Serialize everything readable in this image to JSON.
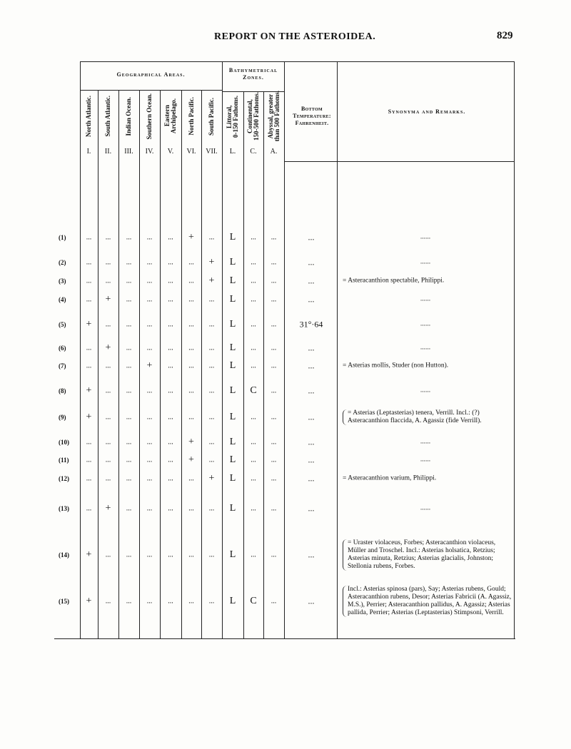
{
  "running_head": "REPORT ON THE ASTEROIDEA.",
  "page_number": "829",
  "table": {
    "group_geo": "Geographical Areas.",
    "group_bathy": "Bathymetrical Zones.",
    "columns": [
      {
        "label": "North Atlantic.",
        "num": "I."
      },
      {
        "label": "South Atlantic.",
        "num": "II."
      },
      {
        "label": "Indian Ocean.",
        "num": "III."
      },
      {
        "label": "Southern Ocean.",
        "num": "IV."
      },
      {
        "label": "Eastern\nArchipelago.",
        "num": "V."
      },
      {
        "label": "North Pacific.",
        "num": "VI."
      },
      {
        "label": "South Pacific.",
        "num": "VII."
      },
      {
        "label": "Littoral,\n0-150 Fathoms.",
        "num": "L."
      },
      {
        "label": "Continental,\n150-500 Fathoms.",
        "num": "C."
      },
      {
        "label": "Abyssal, greater\nthan 500 Fathoms.",
        "num": "A."
      }
    ],
    "temp_header": "Bottom Temperature: Fahrenheit.",
    "remarks_header": "Synonyma and Remarks.",
    "rows": [
      {
        "label": "(1)",
        "cells": [
          "...",
          "...",
          "...",
          "...",
          "...",
          "+",
          "...",
          "L",
          "...",
          "..."
        ],
        "temp": "...",
        "remark": "......"
      },
      {
        "label": "(2)",
        "cells": [
          "...",
          "...",
          "...",
          "...",
          "...",
          "...",
          "+",
          "L",
          "...",
          "..."
        ],
        "temp": "...",
        "remark": "......"
      },
      {
        "label": "(3)",
        "cells": [
          "...",
          "...",
          "...",
          "...",
          "...",
          "...",
          "+",
          "L",
          "...",
          "..."
        ],
        "temp": "...",
        "remark": "= Asteracanthion spectabile, Philippi."
      },
      {
        "label": "(4)",
        "cells": [
          "...",
          "+",
          "...",
          "...",
          "...",
          "...",
          "...",
          "L",
          "...",
          "..."
        ],
        "temp": "...",
        "remark": "......"
      },
      {
        "label": "(5)",
        "cells": [
          "+",
          "...",
          "...",
          "...",
          "...",
          "...",
          "...",
          "L",
          "...",
          "..."
        ],
        "temp": "31°·64",
        "remark": "......"
      },
      {
        "label": "(6)",
        "cells": [
          "...",
          "+",
          "...",
          "...",
          "...",
          "...",
          "...",
          "L",
          "...",
          "..."
        ],
        "temp": "...",
        "remark": "......"
      },
      {
        "label": "(7)",
        "cells": [
          "...",
          "...",
          "...",
          "+",
          "...",
          "...",
          "...",
          "L",
          "...",
          "..."
        ],
        "temp": "...",
        "remark": "= Asterias mollis, Studer (non Hutton)."
      },
      {
        "label": "(8)",
        "cells": [
          "+",
          "...",
          "...",
          "...",
          "...",
          "...",
          "...",
          "L",
          "C",
          "..."
        ],
        "temp": "...",
        "remark": "......"
      },
      {
        "label": "(9)",
        "cells": [
          "+",
          "...",
          "...",
          "...",
          "...",
          "...",
          "...",
          "L",
          "...",
          "..."
        ],
        "temp": "...",
        "remark": "= Asterias (Leptasterias) tenera, Verrill. Incl.: (?) Asteracanthion flaccida, A. Agassiz (fide Verrill)."
      },
      {
        "label": "(10)",
        "cells": [
          "...",
          "...",
          "...",
          "...",
          "...",
          "+",
          "...",
          "L",
          "...",
          "..."
        ],
        "temp": "...",
        "remark": "......"
      },
      {
        "label": "(11)",
        "cells": [
          "...",
          "...",
          "...",
          "...",
          "...",
          "+",
          "...",
          "L",
          "...",
          "..."
        ],
        "temp": "...",
        "remark": "......"
      },
      {
        "label": "(12)",
        "cells": [
          "...",
          "...",
          "...",
          "...",
          "...",
          "...",
          "+",
          "L",
          "...",
          "..."
        ],
        "temp": "...",
        "remark": "= Asteracanthion varium, Philippi."
      },
      {
        "label": "(13)",
        "cells": [
          "...",
          "+",
          "...",
          "...",
          "...",
          "...",
          "...",
          "L",
          "...",
          "..."
        ],
        "temp": "...",
        "remark": "......"
      },
      {
        "label": "(14)",
        "cells": [
          "+",
          "...",
          "...",
          "...",
          "...",
          "...",
          "...",
          "L",
          "...",
          "..."
        ],
        "temp": "...",
        "remark": "= Uraster violaceus, Forbes; Asteracanthion violaceus, Müller and Troschel. Incl.: Asterias holsatica, Retzius; Asterias minuta, Retzius; Asterias glacialis, Johnston; Stellonia rubens, Forbes."
      },
      {
        "label": "(15)",
        "cells": [
          "+",
          "...",
          "...",
          "...",
          "...",
          "...",
          "...",
          "L",
          "C",
          "..."
        ],
        "temp": "...",
        "remark": "Incl.: Asterias spinosa (pars), Say; Asterias rubens, Gould; Asteracanthion rubens, Desor; Asterias Fabricii (A. Agassiz, M.S.), Perrier; Asteracanthion pallidus, A. Agassiz; Asterias pallida, Perrier; Asterias (Leptasterias) Stimpsoni, Verrill."
      }
    ]
  }
}
